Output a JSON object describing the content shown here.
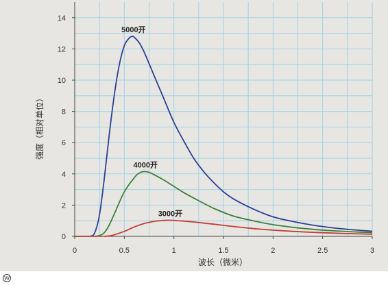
{
  "chart_data": {
    "type": "line",
    "xlabel": "波长（微米）",
    "ylabel": "强度（相对单位）",
    "xlim": [
      0,
      3
    ],
    "ylim": [
      0,
      15
    ],
    "x_ticks": [
      "0",
      "0.5",
      "1",
      "1.5",
      "2",
      "2.5",
      "3"
    ],
    "y_ticks": [
      "0",
      "2",
      "4",
      "6",
      "8",
      "10",
      "12",
      "14"
    ],
    "grid": true,
    "colors": {
      "gridline": "#9fd3e4",
      "axis": "#444444",
      "background": "#e7e6e3"
    },
    "series": [
      {
        "name": "5000开",
        "color": "#2d3f92",
        "x": [
          0.15,
          0.2,
          0.25,
          0.3,
          0.35,
          0.4,
          0.45,
          0.5,
          0.55,
          0.58,
          0.6,
          0.65,
          0.7,
          0.8,
          0.9,
          1.0,
          1.1,
          1.2,
          1.3,
          1.4,
          1.5,
          1.6,
          1.8,
          2.0,
          2.2,
          2.4,
          2.6,
          2.8,
          3.0
        ],
        "y": [
          0.0,
          0.2,
          1.4,
          3.8,
          6.6,
          9.1,
          11.0,
          12.2,
          12.7,
          12.8,
          12.75,
          12.4,
          11.8,
          10.3,
          8.8,
          7.3,
          6.1,
          5.0,
          4.15,
          3.45,
          2.85,
          2.4,
          1.75,
          1.25,
          0.95,
          0.72,
          0.55,
          0.42,
          0.33
        ]
      },
      {
        "name": "4000开",
        "color": "#3b7f3b",
        "x": [
          0.2,
          0.25,
          0.3,
          0.35,
          0.4,
          0.5,
          0.6,
          0.65,
          0.7,
          0.75,
          0.8,
          0.9,
          1.0,
          1.1,
          1.2,
          1.4,
          1.6,
          1.8,
          2.0,
          2.2,
          2.4,
          2.6,
          2.8,
          3.0
        ],
        "y": [
          0.0,
          0.05,
          0.25,
          0.75,
          1.45,
          2.85,
          3.75,
          4.05,
          4.15,
          4.1,
          3.95,
          3.6,
          3.2,
          2.8,
          2.45,
          1.8,
          1.3,
          1.0,
          0.75,
          0.58,
          0.45,
          0.36,
          0.29,
          0.24
        ]
      },
      {
        "name": "3000开",
        "color": "#c53a32",
        "x": [
          0.3,
          0.35,
          0.4,
          0.5,
          0.6,
          0.7,
          0.8,
          0.9,
          0.95,
          1.0,
          1.1,
          1.2,
          1.4,
          1.6,
          1.8,
          2.0,
          2.2,
          2.4,
          2.6,
          2.8,
          3.0
        ],
        "y": [
          0.0,
          0.03,
          0.1,
          0.32,
          0.6,
          0.82,
          0.96,
          1.02,
          1.03,
          1.02,
          0.98,
          0.92,
          0.78,
          0.63,
          0.5,
          0.4,
          0.32,
          0.26,
          0.21,
          0.17,
          0.14
        ]
      }
    ]
  },
  "watermark": "W"
}
